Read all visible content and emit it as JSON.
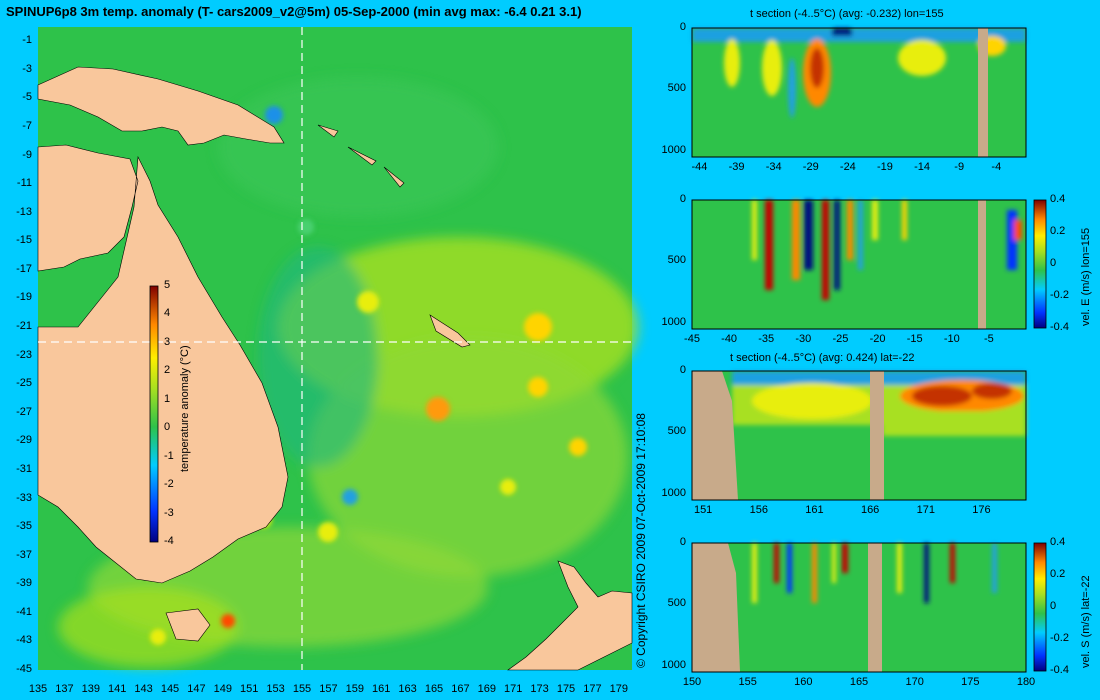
{
  "title": "SPINUP6p8 3m temp. anomaly (T- cars2009_v2@5m) 05-Sep-2000 (min avg max: -6.4 0.21 3.1)",
  "copyright": "© Copyright CSIRO 2009   07-Oct-2009 17:10:08",
  "colors": {
    "background": "#00ccff",
    "land": "#f9c79c",
    "section_land": "#c8aa8a",
    "ocean_mid": "#2ec24a"
  },
  "chart_data": [
    {
      "type": "heatmap",
      "name": "map",
      "x_ticks": [
        "135",
        "137",
        "139",
        "141",
        "143",
        "145",
        "147",
        "149",
        "151",
        "153",
        "155",
        "157",
        "159",
        "161",
        "163",
        "165",
        "167",
        "169",
        "171",
        "173",
        "175",
        "177",
        "179"
      ],
      "y_ticks": [
        "-1",
        "-3",
        "-5",
        "-7",
        "-9",
        "-11",
        "-13",
        "-15",
        "-17",
        "-19",
        "-21",
        "-23",
        "-25",
        "-27",
        "-29",
        "-31",
        "-33",
        "-35",
        "-37",
        "-39",
        "-41",
        "-43",
        "-45"
      ],
      "xlim": [
        135,
        180
      ],
      "ylim": [
        -45,
        0
      ],
      "crosshair": {
        "lon": 155,
        "lat": -22
      },
      "colorbar": {
        "label": "temperature anomaly (°C)",
        "ticks": [
          "5",
          "4",
          "3",
          "2",
          "1",
          "0",
          "-1",
          "-2",
          "-3",
          "-4"
        ],
        "range": [
          -4,
          5
        ]
      }
    },
    {
      "type": "heatmap",
      "name": "t-section-lon",
      "title": "t section (-4..5°C) (avg: -0.232) lon=155",
      "x_ticks": [
        "-44",
        "-39",
        "-34",
        "-29",
        "-24",
        "-19",
        "-14",
        "-9",
        "-4"
      ],
      "y_ticks": [
        "0",
        "500",
        "1000"
      ],
      "xlim": [
        -45,
        0
      ],
      "ylim": [
        1050,
        0
      ]
    },
    {
      "type": "heatmap",
      "name": "vel-e-section",
      "x_ticks": [
        "-45",
        "-40",
        "-35",
        "-30",
        "-25",
        "-20",
        "-15",
        "-10",
        "-5"
      ],
      "y_ticks": [
        "0",
        "500",
        "1000"
      ],
      "xlim": [
        -45,
        0
      ],
      "ylim": [
        1050,
        0
      ],
      "colorbar": {
        "label": "vel. E (m/s) lon=155",
        "ticks": [
          "0.4",
          "0.2",
          "0",
          "-0.2",
          "-0.4"
        ],
        "range": [
          -0.4,
          0.4
        ]
      }
    },
    {
      "type": "heatmap",
      "name": "t-section-lat",
      "title": "t section (-4..5°C) (avg: 0.424) lat=-22",
      "x_ticks": [
        "151",
        "156",
        "161",
        "166",
        "171",
        "176"
      ],
      "y_ticks": [
        "0",
        "500",
        "1000"
      ],
      "xlim": [
        150,
        180
      ],
      "ylim": [
        1050,
        0
      ]
    },
    {
      "type": "heatmap",
      "name": "vel-s-section",
      "x_ticks": [
        "150",
        "155",
        "160",
        "165",
        "170",
        "175",
        "180"
      ],
      "y_ticks": [
        "0",
        "500",
        "1000"
      ],
      "xlim": [
        150,
        180
      ],
      "ylim": [
        1050,
        0
      ],
      "colorbar": {
        "label": "vel. S (m/s) lat=-22",
        "ticks": [
          "0.4",
          "0.2",
          "0",
          "-0.2",
          "-0.4"
        ],
        "range": [
          -0.4,
          0.4
        ]
      }
    }
  ]
}
